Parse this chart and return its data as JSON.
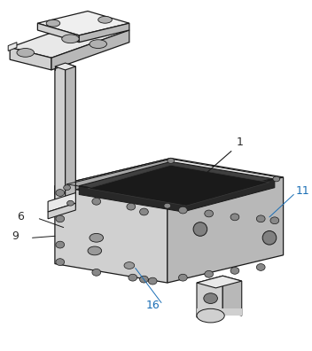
{
  "background_color": "#ffffff",
  "line_color": "#1a1a1a",
  "label_color_black": "#2a2a2a",
  "label_color_blue": "#1a6eb5",
  "figsize": [
    3.52,
    3.96
  ],
  "dpi": 100,
  "colors": {
    "light_top": "#e8e8e8",
    "mid_face": "#d0d0d0",
    "dark_face": "#b8b8b8",
    "darker_face": "#a8a8a8",
    "cavity_dark": "#404040",
    "cavity_darker": "#282828",
    "screw": "#909090",
    "foot_light": "#d0d0d0",
    "foot_mid": "#b8b8b8"
  }
}
